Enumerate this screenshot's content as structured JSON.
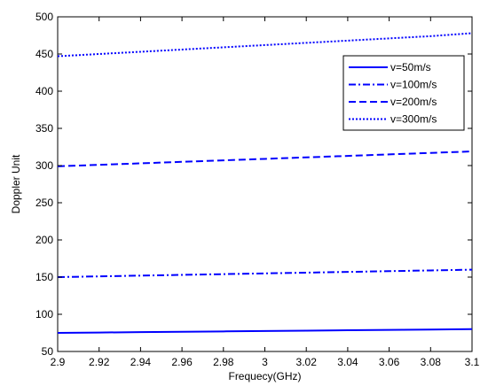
{
  "chart_data": {
    "type": "line",
    "title": "",
    "xlabel": "Frequecy(GHz)",
    "ylabel": "Doppler Unit",
    "xlim": [
      2.9,
      3.1
    ],
    "ylim": [
      50,
      500
    ],
    "xticks": [
      "2.9",
      "2.92",
      "2.94",
      "2.96",
      "2.98",
      "3",
      "3.02",
      "3.04",
      "3.06",
      "3.08",
      "3.1"
    ],
    "yticks": [
      "50",
      "100",
      "150",
      "200",
      "250",
      "300",
      "350",
      "400",
      "450",
      "500"
    ],
    "grid": false,
    "legend_position": "top-right",
    "x": [
      2.9,
      2.92,
      2.94,
      2.96,
      2.98,
      3.0,
      3.02,
      3.04,
      3.06,
      3.08,
      3.1
    ],
    "series": [
      {
        "name": "v=50m/s",
        "style": "solid",
        "color": "#0000ff",
        "values": [
          75,
          75.5,
          76,
          76.5,
          77,
          77.5,
          78,
          78.5,
          79,
          79.5,
          80
        ]
      },
      {
        "name": "v=100m/s",
        "style": "dashdot",
        "color": "#0000ff",
        "values": [
          150,
          151,
          152,
          153,
          154,
          155,
          156,
          157,
          158,
          159,
          160
        ]
      },
      {
        "name": "v=200m/s",
        "style": "dashed",
        "color": "#0000ff",
        "values": [
          299,
          301,
          303,
          305,
          307,
          309,
          311,
          313,
          315,
          317,
          319
        ]
      },
      {
        "name": "v=300m/s",
        "style": "dotted",
        "color": "#0000ff",
        "values": [
          447,
          450,
          453,
          456,
          459,
          462,
          465,
          468,
          471,
          474,
          478
        ]
      }
    ]
  }
}
